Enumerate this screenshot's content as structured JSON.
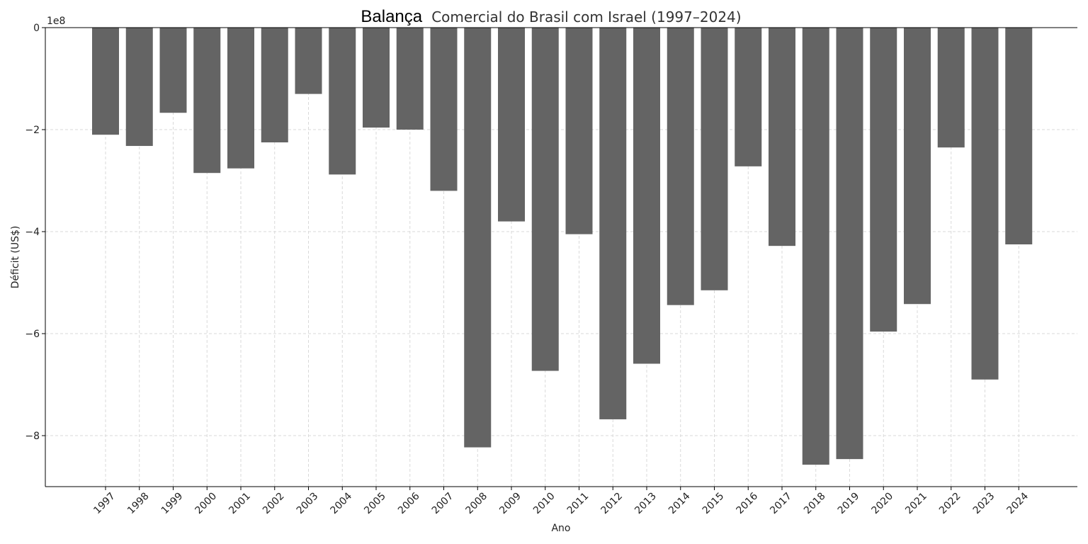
{
  "chart_data": {
    "type": "bar",
    "title": "Balança",
    "subtitle": "Comercial do Brasil com Israel (1997–2024)",
    "xlabel": "Ano",
    "ylabel": "Déficit (US$)",
    "y_multiplier": "1e8",
    "ylim": [
      -900000000,
      0
    ],
    "yticks": [
      0,
      -200000000,
      -400000000,
      -600000000,
      -800000000
    ],
    "ytick_labels": [
      "0",
      "−2",
      "−4",
      "−6",
      "−8"
    ],
    "grid": true,
    "bar_color": "#646464",
    "categories": [
      "1997",
      "1998",
      "1999",
      "2000",
      "2001",
      "2002",
      "2003",
      "2004",
      "2005",
      "2006",
      "2007",
      "2008",
      "2009",
      "2010",
      "2011",
      "2012",
      "2013",
      "2014",
      "2015",
      "2016",
      "2017",
      "2018",
      "2019",
      "2020",
      "2021",
      "2022",
      "2023",
      "2024"
    ],
    "values": [
      -210000000,
      -232000000,
      -167000000,
      -285000000,
      -276000000,
      -225000000,
      -130000000,
      -288000000,
      -196000000,
      -200000000,
      -320000000,
      -823000000,
      -380000000,
      -673000000,
      -405000000,
      -768000000,
      -659000000,
      -544000000,
      -515000000,
      -272000000,
      -428000000,
      -857000000,
      -846000000,
      -596000000,
      -542000000,
      -235000000,
      -690000000,
      -425000000
    ]
  }
}
